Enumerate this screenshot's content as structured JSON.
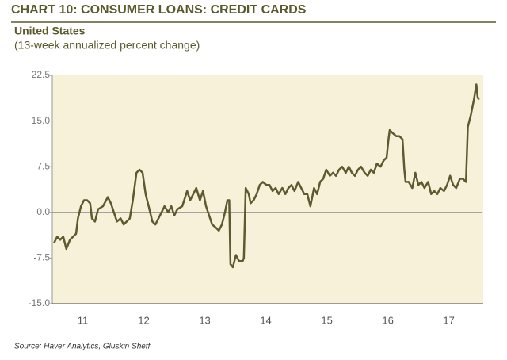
{
  "chart_data": {
    "type": "line",
    "title": "CHART 10: CONSUMER LOANS: CREDIT CARDS",
    "subtitle": "United States",
    "y_label": "(13-week annualized percent change)",
    "source": "Source: Haver Analytics, Gluskin Sheff",
    "x": [
      2011.03,
      2011.08,
      2011.13,
      2011.18,
      2011.23,
      2011.29,
      2011.34,
      2011.39,
      2011.42,
      2011.47,
      2011.52,
      2011.57,
      2011.62,
      2011.65,
      2011.7,
      2011.75,
      2011.83,
      2011.91,
      2011.96,
      2012.01,
      2012.06,
      2012.12,
      2012.17,
      2012.22,
      2012.27,
      2012.32,
      2012.38,
      2012.43,
      2012.48,
      2012.53,
      2012.58,
      2012.64,
      2012.69,
      2012.74,
      2012.79,
      2012.84,
      2012.9,
      2012.95,
      2013.0,
      2013.05,
      2013.13,
      2013.21,
      2013.26,
      2013.31,
      2013.36,
      2013.42,
      2013.47,
      2013.52,
      2013.57,
      2013.62,
      2013.68,
      2013.73,
      2013.78,
      2013.83,
      2013.87,
      2013.9,
      2013.92,
      2013.96,
      2014.01,
      2014.06,
      2014.12,
      2014.14,
      2014.17,
      2014.22,
      2014.25,
      2014.3,
      2014.35,
      2014.4,
      2014.45,
      2014.51,
      2014.56,
      2014.61,
      2014.66,
      2014.71,
      2014.77,
      2014.82,
      2014.87,
      2014.92,
      2014.97,
      2015.03,
      2015.08,
      2015.13,
      2015.18,
      2015.23,
      2015.29,
      2015.34,
      2015.39,
      2015.44,
      2015.49,
      2015.55,
      2015.6,
      2015.65,
      2015.7,
      2015.75,
      2015.81,
      2015.86,
      2015.91,
      2015.96,
      2016.01,
      2016.06,
      2016.12,
      2016.17,
      2016.22,
      2016.27,
      2016.32,
      2016.38,
      2016.43,
      2016.48,
      2016.51,
      2016.53,
      2016.58,
      2016.64,
      2016.69,
      2016.74,
      2016.77,
      2016.79,
      2016.84,
      2016.9,
      2016.95,
      2017.0,
      2017.05,
      2017.1,
      2017.16,
      2017.21,
      2017.26,
      2017.31,
      2017.36,
      2017.42,
      2017.47,
      2017.52,
      2017.57,
      2017.62,
      2017.68,
      2017.73,
      2017.78,
      2017.81,
      2017.86,
      2017.91,
      2017.95,
      2017.97,
      2017.99
    ],
    "series": [
      {
        "name": "Credit cards",
        "color": "#5c5a2e",
        "values": [
          -5,
          -4,
          -4.5,
          -4,
          -6,
          -4.5,
          -4,
          -3.5,
          -1,
          1,
          2,
          2,
          1.5,
          -1,
          -1.5,
          0.5,
          1,
          2.5,
          1.5,
          0,
          -1.5,
          -1,
          -2,
          -1.5,
          -1,
          2,
          6.5,
          7,
          6.5,
          3,
          1,
          -1.5,
          -2,
          -1,
          0,
          1,
          0,
          1,
          -0.5,
          0.5,
          1,
          3.5,
          2,
          3,
          4,
          2,
          3.5,
          1,
          -0.5,
          -2,
          -2.5,
          -3,
          -2,
          0,
          2,
          2,
          -8.5,
          -9,
          -7,
          -8,
          -8,
          -7.5,
          4,
          3,
          1.5,
          2,
          3,
          4.5,
          5,
          4.5,
          4.5,
          3.5,
          4,
          3,
          4,
          3,
          4,
          4.5,
          3.5,
          5,
          4,
          3,
          3,
          1,
          4,
          3,
          5,
          5.5,
          7,
          6,
          6.5,
          6,
          7,
          7.5,
          6.5,
          7.5,
          6.5,
          6,
          7,
          7.5,
          6.5,
          6,
          7,
          6.5,
          8,
          7.5,
          8.5,
          9,
          12,
          13.5,
          13,
          12.5,
          12.5,
          12,
          7,
          5,
          5,
          4,
          6.5,
          4.5,
          5,
          4,
          5,
          3,
          3.5,
          3,
          4,
          3.5,
          4.5,
          6,
          4.5,
          4,
          5.5,
          5.5,
          5,
          14,
          16,
          18.5,
          21,
          19,
          18.5
        ]
      }
    ],
    "xlim": [
      2011,
      2018.05
    ],
    "xticks": [
      {
        "value": 2011.5,
        "label": "11"
      },
      {
        "value": 2012.5,
        "label": "12"
      },
      {
        "value": 2013.5,
        "label": "13"
      },
      {
        "value": 2014.5,
        "label": "14"
      },
      {
        "value": 2015.5,
        "label": "15"
      },
      {
        "value": 2016.5,
        "label": "16"
      },
      {
        "value": 2017.5,
        "label": "17"
      }
    ],
    "ylim": [
      -15,
      22.5
    ],
    "yticks": [
      {
        "value": -15,
        "label": "-15.0"
      },
      -7.5,
      {
        "value": 0,
        "label": "0.0"
      },
      7.5,
      {
        "value": 15,
        "label": "15.0"
      },
      22.5
    ],
    "zero_line": true
  }
}
